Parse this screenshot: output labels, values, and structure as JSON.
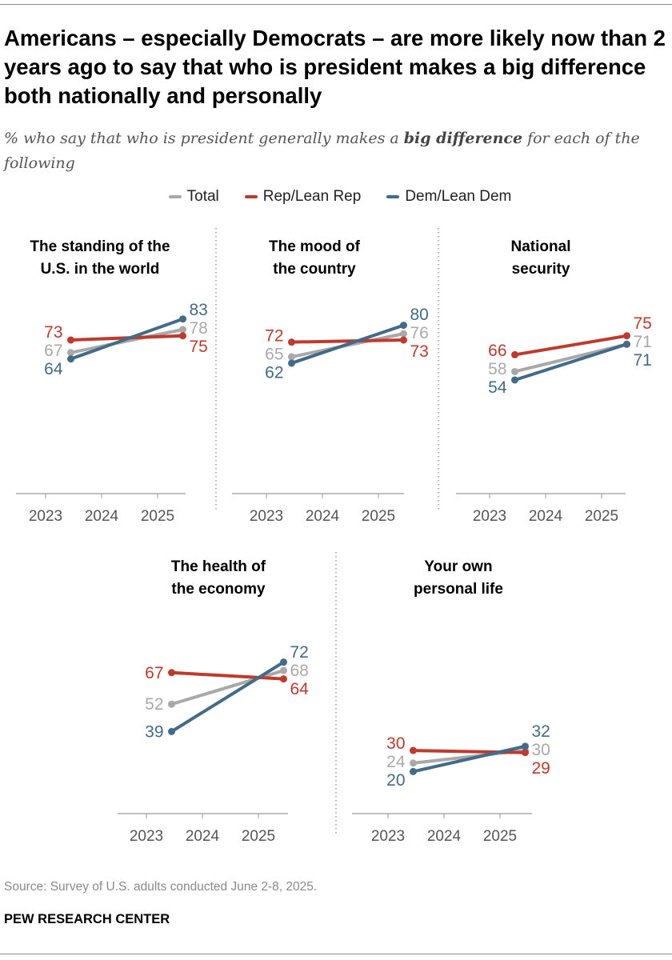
{
  "title": "Americans – especially Democrats – are more likely now than 2 years ago to say that who is president makes a big difference both nationally and personally",
  "subtitle": {
    "before": "% who say that who is president generally makes a ",
    "bold": "big difference",
    "after": " for each of the following"
  },
  "colors": {
    "Total": "#a9a9a9",
    "Rep/Lean Rep": "#bf3a2b",
    "Dem/Lean Dem": "#426a89"
  },
  "legend": [
    "Total",
    "Rep/Lean Rep",
    "Dem/Lean Dem"
  ],
  "chart_data": [
    {
      "type": "line",
      "title": [
        "The standing of the",
        "U.S. in the world"
      ],
      "x": [
        2023.45,
        2025.45
      ],
      "xticks": [
        "2023",
        "2024",
        "2025"
      ],
      "ylim": [
        0,
        100
      ],
      "series": [
        {
          "name": "Total",
          "values": [
            67,
            78
          ]
        },
        {
          "name": "Rep/Lean Rep",
          "values": [
            73,
            75
          ]
        },
        {
          "name": "Dem/Lean Dem",
          "values": [
            64,
            83
          ]
        }
      ]
    },
    {
      "type": "line",
      "title": [
        "The mood of",
        "the country"
      ],
      "x": [
        2023.45,
        2025.45
      ],
      "xticks": [
        "2023",
        "2024",
        "2025"
      ],
      "ylim": [
        0,
        100
      ],
      "series": [
        {
          "name": "Total",
          "values": [
            65,
            76
          ]
        },
        {
          "name": "Rep/Lean Rep",
          "values": [
            72,
            73
          ]
        },
        {
          "name": "Dem/Lean Dem",
          "values": [
            62,
            80
          ]
        }
      ]
    },
    {
      "type": "line",
      "title": [
        "National",
        "security"
      ],
      "x": [
        2023.45,
        2025.45
      ],
      "xticks": [
        "2023",
        "2024",
        "2025"
      ],
      "ylim": [
        0,
        100
      ],
      "series": [
        {
          "name": "Total",
          "values": [
            58,
            71
          ]
        },
        {
          "name": "Rep/Lean Rep",
          "values": [
            66,
            75
          ]
        },
        {
          "name": "Dem/Lean Dem",
          "values": [
            54,
            71
          ]
        }
      ]
    },
    {
      "type": "line",
      "title": [
        "The health of",
        "the economy"
      ],
      "x": [
        2023.45,
        2025.45
      ],
      "xticks": [
        "2023",
        "2024",
        "2025"
      ],
      "ylim": [
        0,
        100
      ],
      "series": [
        {
          "name": "Total",
          "values": [
            52,
            68
          ]
        },
        {
          "name": "Rep/Lean Rep",
          "values": [
            67,
            64
          ]
        },
        {
          "name": "Dem/Lean Dem",
          "values": [
            39,
            72
          ]
        }
      ]
    },
    {
      "type": "line",
      "title": [
        "Your own",
        "personal life"
      ],
      "x": [
        2023.45,
        2025.45
      ],
      "xticks": [
        "2023",
        "2024",
        "2025"
      ],
      "ylim": [
        0,
        100
      ],
      "series": [
        {
          "name": "Total",
          "values": [
            24,
            30
          ]
        },
        {
          "name": "Rep/Lean Rep",
          "values": [
            30,
            29
          ]
        },
        {
          "name": "Dem/Lean Dem",
          "values": [
            20,
            32
          ]
        }
      ]
    }
  ],
  "source": "Source: Survey of U.S. adults conducted June 2-8, 2025.",
  "brand": "PEW RESEARCH CENTER"
}
